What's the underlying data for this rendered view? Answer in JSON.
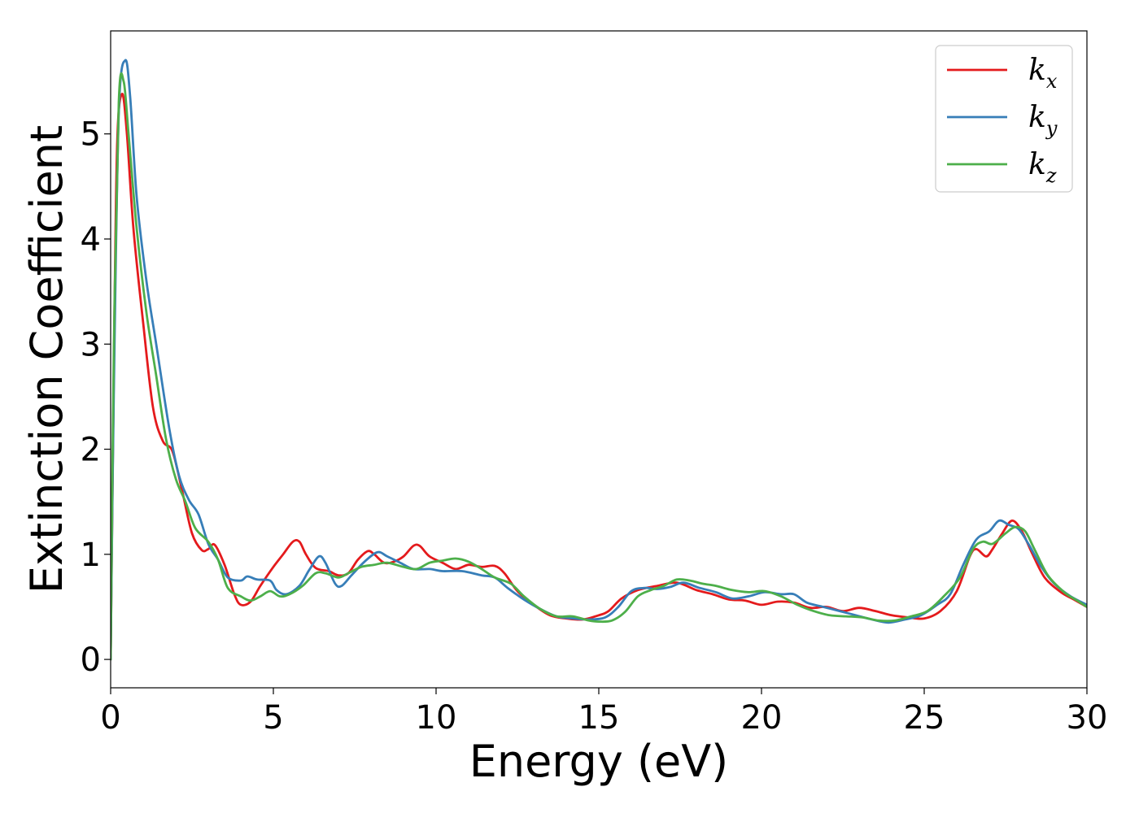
{
  "chart_data": {
    "type": "line",
    "title": "",
    "xlabel": "Energy (eV)",
    "ylabel": "Extinction Coefficient",
    "xlim": [
      0,
      30
    ],
    "ylim": [
      -0.27,
      5.98
    ],
    "xticks": [
      0,
      5,
      10,
      15,
      20,
      25,
      30
    ],
    "yticks": [
      0,
      1,
      2,
      3,
      4,
      5
    ],
    "grid": false,
    "legend": "top-right",
    "series": [
      {
        "name": "k_x",
        "label_base": "k",
        "label_sub": "x",
        "color": "#e41a1c",
        "points": [
          [
            0,
            0
          ],
          [
            0.1,
            2.8
          ],
          [
            0.2,
            4.9
          ],
          [
            0.35,
            5.38
          ],
          [
            0.5,
            5.0
          ],
          [
            0.7,
            4.1
          ],
          [
            1.0,
            3.2
          ],
          [
            1.3,
            2.4
          ],
          [
            1.6,
            2.08
          ],
          [
            1.9,
            1.98
          ],
          [
            2.2,
            1.6
          ],
          [
            2.5,
            1.2
          ],
          [
            2.8,
            1.04
          ],
          [
            3.0,
            1.05
          ],
          [
            3.2,
            1.09
          ],
          [
            3.5,
            0.9
          ],
          [
            3.8,
            0.62
          ],
          [
            4.0,
            0.52
          ],
          [
            4.3,
            0.55
          ],
          [
            4.6,
            0.7
          ],
          [
            5.0,
            0.88
          ],
          [
            5.3,
            1.0
          ],
          [
            5.6,
            1.12
          ],
          [
            5.8,
            1.12
          ],
          [
            6.0,
            1.0
          ],
          [
            6.3,
            0.87
          ],
          [
            6.7,
            0.84
          ],
          [
            7.0,
            0.8
          ],
          [
            7.3,
            0.82
          ],
          [
            7.6,
            0.95
          ],
          [
            7.9,
            1.03
          ],
          [
            8.1,
            1.0
          ],
          [
            8.4,
            0.92
          ],
          [
            8.7,
            0.93
          ],
          [
            9.0,
            0.98
          ],
          [
            9.3,
            1.08
          ],
          [
            9.5,
            1.08
          ],
          [
            9.8,
            0.98
          ],
          [
            10.2,
            0.92
          ],
          [
            10.6,
            0.86
          ],
          [
            11.0,
            0.9
          ],
          [
            11.4,
            0.88
          ],
          [
            11.8,
            0.89
          ],
          [
            12.1,
            0.82
          ],
          [
            12.5,
            0.65
          ],
          [
            13.0,
            0.52
          ],
          [
            13.5,
            0.42
          ],
          [
            14.0,
            0.39
          ],
          [
            14.5,
            0.38
          ],
          [
            15.0,
            0.42
          ],
          [
            15.3,
            0.46
          ],
          [
            15.7,
            0.58
          ],
          [
            16.2,
            0.66
          ],
          [
            16.8,
            0.7
          ],
          [
            17.4,
            0.73
          ],
          [
            18.0,
            0.66
          ],
          [
            18.5,
            0.62
          ],
          [
            19.0,
            0.57
          ],
          [
            19.5,
            0.56
          ],
          [
            20.0,
            0.52
          ],
          [
            20.5,
            0.55
          ],
          [
            21.0,
            0.54
          ],
          [
            21.5,
            0.49
          ],
          [
            22.0,
            0.5
          ],
          [
            22.5,
            0.46
          ],
          [
            23.0,
            0.49
          ],
          [
            23.5,
            0.46
          ],
          [
            24.0,
            0.42
          ],
          [
            24.5,
            0.4
          ],
          [
            25.0,
            0.39
          ],
          [
            25.5,
            0.46
          ],
          [
            26.0,
            0.65
          ],
          [
            26.4,
            0.98
          ],
          [
            26.6,
            1.05
          ],
          [
            26.9,
            0.98
          ],
          [
            27.1,
            1.05
          ],
          [
            27.4,
            1.2
          ],
          [
            27.7,
            1.32
          ],
          [
            28.0,
            1.22
          ],
          [
            28.3,
            1.02
          ],
          [
            28.7,
            0.78
          ],
          [
            29.2,
            0.64
          ],
          [
            29.6,
            0.57
          ],
          [
            30.0,
            0.5
          ]
        ]
      },
      {
        "name": "k_y",
        "label_base": "k",
        "label_sub": "y",
        "color": "#377eb8",
        "points": [
          [
            0,
            0
          ],
          [
            0.1,
            2.6
          ],
          [
            0.25,
            5.2
          ],
          [
            0.45,
            5.7
          ],
          [
            0.6,
            5.35
          ],
          [
            0.8,
            4.4
          ],
          [
            1.1,
            3.6
          ],
          [
            1.4,
            3.0
          ],
          [
            1.8,
            2.2
          ],
          [
            2.1,
            1.75
          ],
          [
            2.4,
            1.52
          ],
          [
            2.7,
            1.38
          ],
          [
            3.0,
            1.1
          ],
          [
            3.3,
            0.95
          ],
          [
            3.6,
            0.78
          ],
          [
            4.0,
            0.75
          ],
          [
            4.2,
            0.79
          ],
          [
            4.5,
            0.76
          ],
          [
            4.9,
            0.75
          ],
          [
            5.1,
            0.66
          ],
          [
            5.4,
            0.62
          ],
          [
            5.8,
            0.7
          ],
          [
            6.1,
            0.85
          ],
          [
            6.4,
            0.98
          ],
          [
            6.6,
            0.92
          ],
          [
            6.9,
            0.72
          ],
          [
            7.1,
            0.7
          ],
          [
            7.4,
            0.8
          ],
          [
            7.8,
            0.93
          ],
          [
            8.2,
            1.02
          ],
          [
            8.5,
            0.98
          ],
          [
            8.9,
            0.92
          ],
          [
            9.3,
            0.86
          ],
          [
            9.8,
            0.86
          ],
          [
            10.2,
            0.84
          ],
          [
            10.8,
            0.84
          ],
          [
            11.4,
            0.8
          ],
          [
            11.8,
            0.78
          ],
          [
            12.2,
            0.68
          ],
          [
            12.7,
            0.57
          ],
          [
            13.2,
            0.48
          ],
          [
            13.7,
            0.41
          ],
          [
            14.2,
            0.39
          ],
          [
            14.7,
            0.38
          ],
          [
            15.2,
            0.4
          ],
          [
            15.6,
            0.5
          ],
          [
            16.0,
            0.65
          ],
          [
            16.4,
            0.68
          ],
          [
            16.8,
            0.67
          ],
          [
            17.2,
            0.69
          ],
          [
            17.6,
            0.73
          ],
          [
            18.1,
            0.68
          ],
          [
            18.6,
            0.64
          ],
          [
            19.1,
            0.58
          ],
          [
            19.6,
            0.6
          ],
          [
            20.1,
            0.64
          ],
          [
            20.6,
            0.62
          ],
          [
            21.0,
            0.62
          ],
          [
            21.4,
            0.54
          ],
          [
            21.9,
            0.5
          ],
          [
            22.4,
            0.46
          ],
          [
            22.9,
            0.42
          ],
          [
            23.4,
            0.38
          ],
          [
            23.9,
            0.35
          ],
          [
            24.4,
            0.38
          ],
          [
            24.9,
            0.42
          ],
          [
            25.4,
            0.52
          ],
          [
            25.8,
            0.62
          ],
          [
            26.2,
            0.9
          ],
          [
            26.6,
            1.14
          ],
          [
            27.0,
            1.22
          ],
          [
            27.3,
            1.32
          ],
          [
            27.6,
            1.28
          ],
          [
            27.9,
            1.24
          ],
          [
            28.2,
            1.1
          ],
          [
            28.6,
            0.88
          ],
          [
            29.0,
            0.72
          ],
          [
            29.5,
            0.6
          ],
          [
            30.0,
            0.52
          ]
        ]
      },
      {
        "name": "k_z",
        "label_base": "k",
        "label_sub": "z",
        "color": "#4daf4a",
        "points": [
          [
            0,
            0
          ],
          [
            0.1,
            3.0
          ],
          [
            0.25,
            5.3
          ],
          [
            0.4,
            5.5
          ],
          [
            0.55,
            5.0
          ],
          [
            0.8,
            4.1
          ],
          [
            1.1,
            3.3
          ],
          [
            1.4,
            2.7
          ],
          [
            1.7,
            2.1
          ],
          [
            2.0,
            1.72
          ],
          [
            2.3,
            1.5
          ],
          [
            2.6,
            1.25
          ],
          [
            3.0,
            1.12
          ],
          [
            3.3,
            0.95
          ],
          [
            3.6,
            0.68
          ],
          [
            4.0,
            0.6
          ],
          [
            4.3,
            0.56
          ],
          [
            4.6,
            0.6
          ],
          [
            4.9,
            0.65
          ],
          [
            5.2,
            0.6
          ],
          [
            5.5,
            0.62
          ],
          [
            5.9,
            0.7
          ],
          [
            6.3,
            0.82
          ],
          [
            6.6,
            0.82
          ],
          [
            7.0,
            0.78
          ],
          [
            7.3,
            0.82
          ],
          [
            7.7,
            0.88
          ],
          [
            8.1,
            0.9
          ],
          [
            8.5,
            0.92
          ],
          [
            9.0,
            0.88
          ],
          [
            9.4,
            0.86
          ],
          [
            9.8,
            0.92
          ],
          [
            10.2,
            0.94
          ],
          [
            10.6,
            0.96
          ],
          [
            11.0,
            0.93
          ],
          [
            11.4,
            0.86
          ],
          [
            11.8,
            0.78
          ],
          [
            12.3,
            0.72
          ],
          [
            12.7,
            0.6
          ],
          [
            13.2,
            0.48
          ],
          [
            13.7,
            0.41
          ],
          [
            14.2,
            0.41
          ],
          [
            14.7,
            0.37
          ],
          [
            15.0,
            0.36
          ],
          [
            15.4,
            0.37
          ],
          [
            15.8,
            0.45
          ],
          [
            16.2,
            0.6
          ],
          [
            16.6,
            0.66
          ],
          [
            17.0,
            0.7
          ],
          [
            17.4,
            0.76
          ],
          [
            17.8,
            0.75
          ],
          [
            18.2,
            0.72
          ],
          [
            18.6,
            0.7
          ],
          [
            19.1,
            0.66
          ],
          [
            19.6,
            0.64
          ],
          [
            20.1,
            0.65
          ],
          [
            20.6,
            0.6
          ],
          [
            21.1,
            0.52
          ],
          [
            21.6,
            0.46
          ],
          [
            22.1,
            0.42
          ],
          [
            22.6,
            0.41
          ],
          [
            23.1,
            0.4
          ],
          [
            23.6,
            0.37
          ],
          [
            24.1,
            0.37
          ],
          [
            24.6,
            0.41
          ],
          [
            25.1,
            0.46
          ],
          [
            25.6,
            0.6
          ],
          [
            26.1,
            0.78
          ],
          [
            26.5,
            1.05
          ],
          [
            26.8,
            1.12
          ],
          [
            27.1,
            1.1
          ],
          [
            27.5,
            1.2
          ],
          [
            27.8,
            1.26
          ],
          [
            28.1,
            1.22
          ],
          [
            28.4,
            1.04
          ],
          [
            28.8,
            0.8
          ],
          [
            29.3,
            0.64
          ],
          [
            29.7,
            0.56
          ],
          [
            30.0,
            0.5
          ]
        ]
      }
    ]
  }
}
